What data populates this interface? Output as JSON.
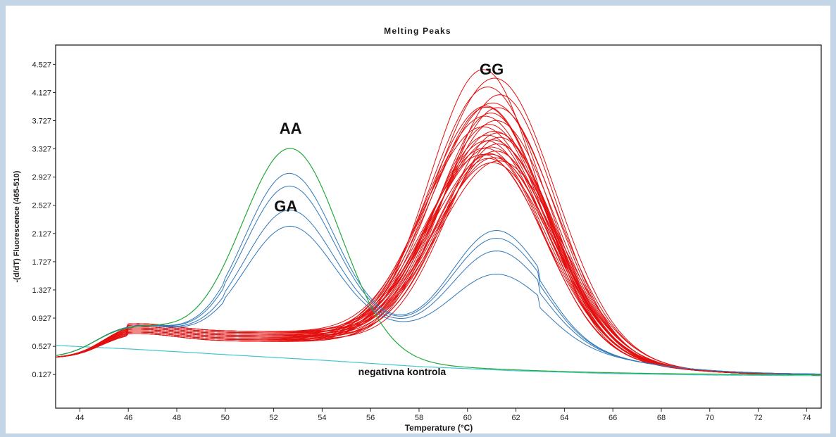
{
  "chart_data": {
    "type": "line",
    "title": "Melting Peaks",
    "xlabel": "Temperature (°C)",
    "ylabel": "-(d/dT) Fluorescence (465-510)",
    "xlim": [
      43,
      74.6
    ],
    "ylim": [
      -0.35,
      4.8
    ],
    "xticks": [
      44,
      46,
      48,
      50,
      52,
      54,
      56,
      58,
      60,
      62,
      64,
      66,
      68,
      70,
      72,
      74
    ],
    "xtick_labels": [
      "44",
      "46",
      "48",
      "50",
      "52",
      "54",
      "56",
      "58",
      "60",
      "62",
      "64",
      "66",
      "68",
      "70",
      "72",
      "74"
    ],
    "yticks": [
      0.127,
      0.527,
      0.927,
      1.327,
      1.727,
      2.127,
      2.527,
      2.927,
      3.327,
      3.727,
      4.127,
      4.527
    ],
    "ytick_labels": [
      "0.127",
      "0.527",
      "0.927",
      "1.327",
      "1.727",
      "2.127",
      "2.527",
      "2.927",
      "3.327",
      "3.727",
      "4.127",
      "4.527"
    ],
    "grid": false,
    "annotations": [
      {
        "text": "GG",
        "x": 61.0,
        "y": 4.47
      },
      {
        "text": "AA",
        "x": 52.7,
        "y": 3.63
      },
      {
        "text": "GA",
        "x": 52.5,
        "y": 2.53
      },
      {
        "text": "negativna kontrola",
        "x": 57.3,
        "y": 0.16
      }
    ],
    "groups": [
      {
        "label": "GG",
        "color": "#e31010",
        "curve_count": 30,
        "peak_temperature": 61.0,
        "peak_heights": [
          4.48,
          4.37,
          4.25,
          4.13,
          4.02,
          3.98,
          3.95,
          3.88,
          3.82,
          3.77,
          3.72,
          3.67,
          3.62,
          3.57,
          3.53,
          3.5,
          3.47,
          3.44,
          3.4,
          3.37,
          3.34,
          3.31,
          3.28,
          3.25,
          3.22,
          3.2,
          3.18,
          3.95,
          3.6,
          3.3
        ],
        "baseline_at_56": 0.68
      },
      {
        "label": "GA",
        "color": "#2f78bb",
        "curve_count": 4,
        "series": [
          {
            "peak1": 3.04,
            "peak2": 2.31
          },
          {
            "peak1": 2.86,
            "peak2": 2.2
          },
          {
            "peak1": 2.52,
            "peak2": 2.02
          },
          {
            "peak1": 2.29,
            "peak2": 1.69
          }
        ]
      },
      {
        "label": "AA",
        "color": "#25a83a",
        "curve_count": 1,
        "peak_temperature": 52.7,
        "peak_height": 3.63
      },
      {
        "label": "negativna kontrola",
        "color": "#3ec6cf",
        "curve_count": 1,
        "points": [
          [
            43,
            0.54
          ],
          [
            46,
            0.49
          ],
          [
            50,
            0.41
          ],
          [
            54,
            0.33
          ],
          [
            58,
            0.24
          ],
          [
            62,
            0.18
          ],
          [
            66,
            0.14
          ],
          [
            70,
            0.12
          ],
          [
            74.6,
            0.11
          ]
        ]
      }
    ]
  }
}
